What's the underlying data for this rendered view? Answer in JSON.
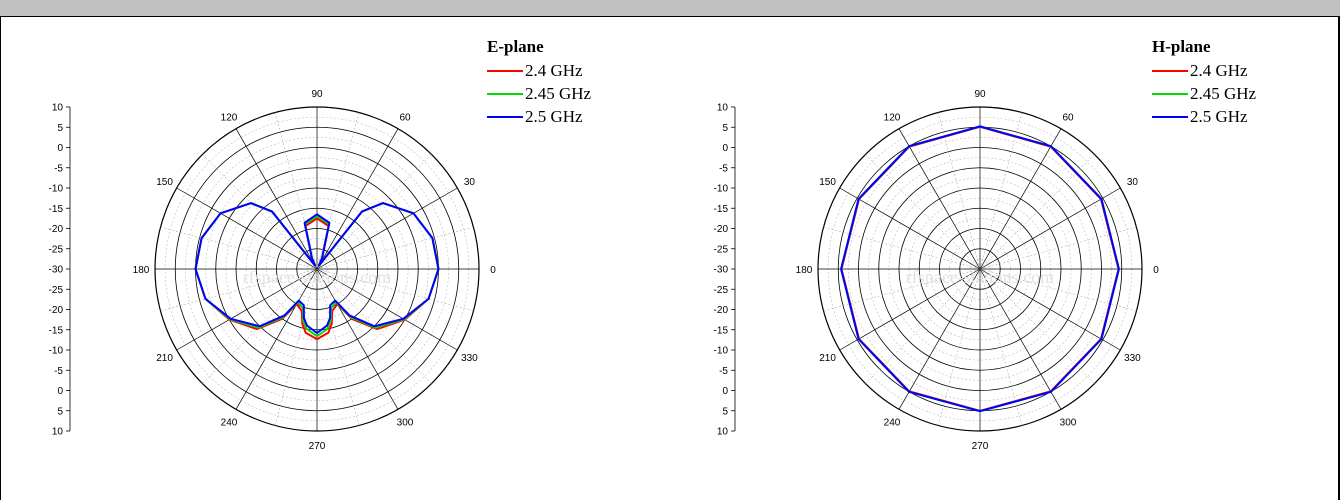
{
  "chart_data": [
    {
      "type": "polar",
      "title": "",
      "legend_title": "E-plane",
      "legend_position": "top-right",
      "angle_ticks": [
        "0",
        "30",
        "60",
        "90",
        "120",
        "150",
        "180",
        "210",
        "240",
        "270",
        "300",
        "330"
      ],
      "radial_ticks": [
        "10",
        "5",
        "0",
        "-5",
        "-10",
        "-15",
        "-20",
        "-25",
        "-30",
        "-25",
        "-20",
        "-15",
        "-10",
        "-5",
        "0",
        "5",
        "10"
      ],
      "r_range_dB": [
        -30,
        10
      ],
      "grid": true,
      "watermark": "rfspace-stations.com",
      "series": [
        {
          "name": "2.4 GHz",
          "color": "#ff0000",
          "theta": [
            0,
            15,
            30,
            45,
            52,
            60,
            65,
            75,
            90,
            105,
            115,
            120,
            128,
            135,
            150,
            165,
            180,
            195,
            210,
            225,
            235,
            240,
            250,
            255,
            260,
            270,
            280,
            285,
            290,
            300,
            305,
            315,
            330,
            345,
            360
          ],
          "r": [
            0,
            -0.5,
            -2.5,
            -7,
            -12,
            -29,
            -27,
            -19,
            -17.5,
            -19,
            -27,
            -29,
            -12,
            -7,
            -2.5,
            -0.5,
            0,
            -1.5,
            -5,
            -9,
            -15,
            -20,
            -19,
            -16,
            -14,
            -12.7,
            -14,
            -16,
            -19,
            -20,
            -15,
            -9,
            -5,
            -1.5,
            0
          ]
        },
        {
          "name": "2.45 GHz",
          "color": "#00dd00",
          "theta": [
            0,
            15,
            30,
            45,
            52,
            60,
            65,
            75,
            90,
            105,
            115,
            120,
            128,
            135,
            150,
            165,
            180,
            195,
            210,
            225,
            235,
            240,
            250,
            255,
            260,
            270,
            280,
            285,
            290,
            300,
            305,
            315,
            330,
            345,
            360
          ],
          "r": [
            0,
            -0.5,
            -2.5,
            -7,
            -12,
            -29,
            -27,
            -18.5,
            -17,
            -18.5,
            -27,
            -29,
            -12,
            -7,
            -2.5,
            -0.5,
            0,
            -1.5,
            -5.2,
            -9.5,
            -15.5,
            -20.5,
            -19.8,
            -16.8,
            -15,
            -13.4,
            -15,
            -16.8,
            -19.8,
            -20.5,
            -15.5,
            -9.5,
            -5.2,
            -1.5,
            0
          ]
        },
        {
          "name": "2.5 GHz",
          "color": "#0000ff",
          "theta": [
            0,
            15,
            30,
            45,
            52,
            60,
            65,
            75,
            90,
            105,
            115,
            120,
            128,
            135,
            150,
            165,
            180,
            195,
            210,
            225,
            235,
            240,
            250,
            255,
            260,
            270,
            280,
            285,
            290,
            300,
            305,
            315,
            330,
            345,
            360
          ],
          "r": [
            0,
            -0.5,
            -2.5,
            -7,
            -12,
            -29,
            -27,
            -18.2,
            -16.5,
            -18.2,
            -27,
            -29,
            -12,
            -7,
            -2.5,
            -0.5,
            0,
            -1.5,
            -5.4,
            -10,
            -16,
            -21,
            -20.5,
            -17.5,
            -15.8,
            -14.2,
            -15.8,
            -17.5,
            -20.5,
            -21,
            -16,
            -10,
            -5.4,
            -1.5,
            0
          ]
        }
      ]
    },
    {
      "type": "polar",
      "title": "",
      "legend_title": "H-plane",
      "legend_position": "top-right",
      "angle_ticks": [
        "0",
        "30",
        "60",
        "90",
        "120",
        "150",
        "180",
        "210",
        "240",
        "270",
        "300",
        "330"
      ],
      "radial_ticks": [
        "10",
        "5",
        "0",
        "-5",
        "-10",
        "-15",
        "-20",
        "-25",
        "-30",
        "-25",
        "-20",
        "-15",
        "-10",
        "-5",
        "0",
        "5",
        "10"
      ],
      "r_range_dB": [
        -30,
        10
      ],
      "grid": true,
      "watermark": "rfspace-stations.com",
      "series": [
        {
          "name": "2.4 GHz",
          "color": "#ff0000",
          "theta": [
            0,
            30,
            60,
            90,
            120,
            150,
            180,
            210,
            240,
            270,
            300,
            330,
            360
          ],
          "r": [
            4.2,
            4.5,
            4.9,
            5.1,
            4.9,
            4.5,
            4.2,
            4.5,
            4.9,
            5.0,
            4.9,
            4.5,
            4.2
          ]
        },
        {
          "name": "2.45 GHz",
          "color": "#00dd00",
          "theta": [
            0,
            30,
            60,
            90,
            120,
            150,
            180,
            210,
            240,
            270,
            300,
            330,
            360
          ],
          "r": [
            4.3,
            4.6,
            5.0,
            5.2,
            5.0,
            4.6,
            4.3,
            4.6,
            5.0,
            5.1,
            5.0,
            4.6,
            4.3
          ]
        },
        {
          "name": "2.5 GHz",
          "color": "#0000ff",
          "theta": [
            0,
            30,
            60,
            90,
            120,
            150,
            180,
            210,
            240,
            270,
            300,
            330,
            360
          ],
          "r": [
            4.3,
            4.6,
            5.0,
            5.2,
            5.0,
            4.6,
            4.3,
            4.6,
            5.0,
            5.1,
            5.0,
            4.6,
            4.3
          ]
        }
      ]
    }
  ]
}
